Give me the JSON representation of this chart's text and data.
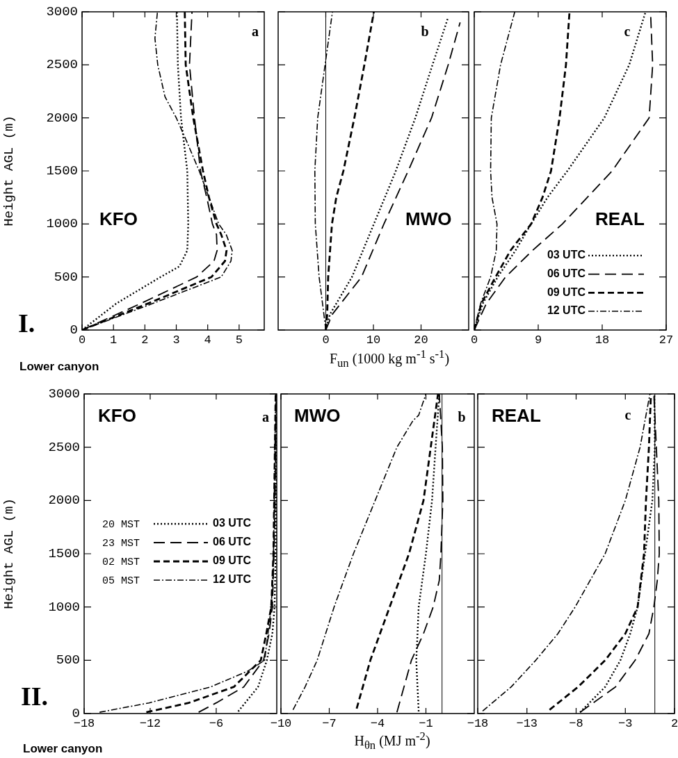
{
  "chart_data": [
    {
      "type": "line",
      "ylabel": "Height AGL (m)",
      "xlim": [
        0,
        5.8
      ],
      "xticks": [
        0,
        1,
        2,
        3,
        4,
        5
      ],
      "ylim": [
        0,
        3000
      ],
      "yticks": [
        0,
        500,
        1000,
        1500,
        2000,
        2500,
        3000
      ],
      "annotations": [
        "KFO",
        "a",
        "I.",
        "Lower canyon"
      ],
      "series": [
        {
          "color": "#000000",
          "line_style": "dotted",
          "x": [
            0,
            1.09,
            2.5,
            3.1,
            3.35,
            3.38,
            3.35,
            3.23,
            3.15,
            3.05,
            3.02
          ],
          "values": [
            0,
            250,
            500,
            600,
            750,
            1000,
            1500,
            1800,
            2000,
            2500,
            3000
          ]
        },
        {
          "color": "#000000",
          "line_style": "longdash",
          "x": [
            0,
            1.87,
            3.65,
            4.2,
            4.3,
            4.28,
            4.15,
            3.97,
            3.77,
            3.58,
            3.42,
            3.5
          ],
          "values": [
            0,
            250,
            500,
            650,
            750,
            900,
            1000,
            1250,
            1500,
            2000,
            2500,
            3000
          ]
        },
        {
          "color": "#000000",
          "line_style": "dashed",
          "x": [
            0,
            2.1,
            4.12,
            4.55,
            4.6,
            4.43,
            4.28,
            4.04,
            3.85,
            3.54,
            3.3,
            3.27
          ],
          "values": [
            0,
            250,
            500,
            650,
            750,
            900,
            1000,
            1250,
            1500,
            2000,
            2500,
            3000
          ]
        },
        {
          "color": "#000000",
          "line_style": "dashdot",
          "x": [
            0,
            2.25,
            4.43,
            4.74,
            4.78,
            4.59,
            4.35,
            4.04,
            3.73,
            3.3,
            3.0,
            2.64,
            2.41,
            2.32,
            2.4
          ],
          "values": [
            0,
            250,
            500,
            650,
            750,
            900,
            1000,
            1250,
            1500,
            1800,
            2000,
            2200,
            2500,
            2750,
            3000
          ]
        }
      ]
    },
    {
      "type": "line",
      "xlabel": "F$_{un}$ (1000 kg m$^{-1}$ s$^{-1}$)",
      "xlim": [
        -10,
        30
      ],
      "xticks": [
        0,
        10,
        20
      ],
      "ylim": [
        0,
        3000
      ],
      "yticks": [
        0,
        500,
        1000,
        1500,
        2000,
        2500,
        3000
      ],
      "tick_labels": "x",
      "annotations": [
        "MWO",
        "b"
      ],
      "ref_lines": [
        {
          "axis": "x",
          "value": 0
        }
      ],
      "series": [
        {
          "color": "#000000",
          "line_style": "dotted",
          "x": [
            0,
            0.9,
            5.5,
            10.1,
            14.7,
            18.8,
            22.4,
            25.7
          ],
          "values": [
            0,
            150,
            500,
            1000,
            1500,
            2000,
            2500,
            2950
          ]
        },
        {
          "color": "#000000",
          "line_style": "longdash",
          "x": [
            0,
            1.4,
            7.5,
            12.2,
            17.3,
            22.2,
            25.7,
            28.2
          ],
          "values": [
            0,
            150,
            500,
            1000,
            1500,
            2000,
            2500,
            2900
          ]
        },
        {
          "color": "#000000",
          "line_style": "dashed",
          "x": [
            0,
            0.3,
            0.5,
            1.3,
            2.2,
            3.7,
            6.0,
            8.1,
            10.1
          ],
          "values": [
            0,
            150,
            500,
            1000,
            1250,
            1500,
            2000,
            2500,
            3000
          ]
        },
        {
          "color": "#000000",
          "line_style": "dashdot",
          "x": [
            0,
            -0.4,
            -1.4,
            -2.2,
            -2.3,
            -1.7,
            -0.15,
            1.4
          ],
          "values": [
            0,
            150,
            500,
            1000,
            1500,
            2000,
            2500,
            3000
          ]
        }
      ]
    },
    {
      "type": "line",
      "xlim": [
        0,
        27
      ],
      "xticks": [
        0,
        9,
        18,
        27
      ],
      "ylim": [
        0,
        3000
      ],
      "yticks": [
        0,
        500,
        1000,
        1500,
        2000,
        2500,
        3000
      ],
      "tick_labels": "x",
      "legend": "bottom right",
      "annotations": [
        "REAL",
        "c"
      ],
      "series": [
        {
          "name": "03 UTC",
          "color": "#000000",
          "line_style": "dotted",
          "x": [
            0,
            1.2,
            3.3,
            5.8,
            8.0,
            10.3,
            13.1,
            18.3,
            21.8,
            24.1
          ],
          "values": [
            0,
            250,
            500,
            750,
            1000,
            1250,
            1500,
            2000,
            2500,
            3000
          ]
        },
        {
          "name": "06 UTC",
          "color": "#000000",
          "line_style": "longdash",
          "x": [
            0,
            1.7,
            4.4,
            8.2,
            12.4,
            19.4,
            24.6,
            25.1,
            24.8
          ],
          "values": [
            0,
            250,
            500,
            750,
            1000,
            1500,
            2000,
            2500,
            3000
          ]
        },
        {
          "name": "09 UTC",
          "color": "#000000",
          "line_style": "dashed",
          "x": [
            0,
            1.0,
            3.0,
            5.1,
            8.0,
            9.6,
            10.8,
            12.0,
            12.9,
            13.4
          ],
          "values": [
            0,
            250,
            500,
            750,
            1000,
            1250,
            1500,
            2000,
            2500,
            3000
          ]
        },
        {
          "name": "12 UTC",
          "color": "#000000",
          "line_style": "dashdot",
          "x": [
            0,
            0.9,
            2.3,
            3.1,
            3.2,
            2.5,
            2.3,
            2.4,
            3.7,
            5.7
          ],
          "values": [
            0,
            250,
            500,
            750,
            1000,
            1250,
            1500,
            2000,
            2500,
            3000
          ]
        }
      ]
    },
    {
      "type": "line",
      "ylabel": "Height AGL (m)",
      "xlim": [
        -18,
        -0.5
      ],
      "xticks": [
        -18,
        -12,
        -6
      ],
      "ylim": [
        0,
        3000
      ],
      "yticks": [
        0,
        500,
        1000,
        1500,
        2000,
        2500,
        3000
      ],
      "legend": "center",
      "annotations": [
        "KFO",
        "a",
        "II.",
        "Lower canyon",
        "20 MST",
        "23 MST",
        "02 MST",
        "05 MST"
      ],
      "series": [
        {
          "name": "03 UTC",
          "color": "#000000",
          "line_style": "dotted",
          "x": [
            -4.0,
            -2.2,
            -1.4,
            -0.9,
            -0.7,
            -0.6,
            -0.55,
            -0.5
          ],
          "values": [
            20,
            250,
            500,
            750,
            1000,
            1500,
            2000,
            3000
          ]
        },
        {
          "name": "06 UTC",
          "color": "#000000",
          "line_style": "longdash",
          "x": [
            -7.6,
            -6.0,
            -3.5,
            -1.7,
            -1.2,
            -0.9,
            -0.75,
            -0.65,
            -0.55
          ],
          "values": [
            12,
            100,
            250,
            500,
            750,
            1000,
            1500,
            2000,
            3000
          ]
        },
        {
          "name": "09 UTC",
          "color": "#000000",
          "line_style": "dashed",
          "x": [
            -12.35,
            -8.5,
            -4.4,
            -1.95,
            -1.45,
            -1.0,
            -0.8,
            -0.6
          ],
          "values": [
            12,
            100,
            250,
            500,
            750,
            1000,
            1500,
            3000
          ]
        },
        {
          "name": "12 UTC",
          "color": "#000000",
          "line_style": "dashdot",
          "x": [
            -16.6,
            -12.1,
            -6.5,
            -3.1,
            -1.6,
            -1.3,
            -1.0,
            -0.8,
            -0.6
          ],
          "values": [
            12,
            100,
            250,
            400,
            500,
            750,
            1000,
            1500,
            3000
          ]
        }
      ]
    },
    {
      "type": "line",
      "xlabel": "H$_{θn}$ (MJ m$^{-2}$)",
      "xlim": [
        -10,
        2
      ],
      "xticks": [
        -10,
        -7,
        -4,
        -1
      ],
      "ylim": [
        0,
        3000
      ],
      "yticks": [
        0,
        500,
        1000,
        1500,
        2000,
        2500,
        3000
      ],
      "tick_labels": "x",
      "annotations": [
        "MWO",
        "b"
      ],
      "ref_lines": [
        {
          "axis": "x",
          "value": 0
        }
      ],
      "series": [
        {
          "color": "#000000",
          "line_style": "dotted",
          "x": [
            -1.45,
            -1.6,
            -1.52,
            -1.45,
            -1.0,
            -0.62,
            -0.4,
            -0.17
          ],
          "values": [
            20,
            500,
            750,
            1000,
            1500,
            2000,
            2500,
            3000
          ]
        },
        {
          "color": "#000000",
          "line_style": "longdash",
          "x": [
            -2.8,
            -1.9,
            -1.15,
            -0.55,
            -0.17,
            -0.07,
            0.05,
            0.02,
            -0.17
          ],
          "values": [
            12,
            500,
            750,
            1000,
            1250,
            1500,
            2000,
            2500,
            3000
          ]
        },
        {
          "color": "#000000",
          "line_style": "dashed",
          "x": [
            -5.3,
            -4.45,
            -3.25,
            -2.05,
            -1.15,
            -0.7,
            -0.25
          ],
          "values": [
            46,
            500,
            1000,
            1500,
            2000,
            2500,
            3000
          ]
        },
        {
          "color": "#000000",
          "line_style": "dashdot",
          "x": [
            -9.25,
            -8.5,
            -7.75,
            -6.7,
            -5.5,
            -4.15,
            -2.8,
            -1.8,
            -1.45,
            -1.0
          ],
          "values": [
            35,
            250,
            500,
            1000,
            1500,
            2000,
            2500,
            2750,
            2800,
            3000
          ]
        }
      ]
    },
    {
      "type": "line",
      "xlim": [
        -18,
        2
      ],
      "xticks": [
        -18,
        -13,
        -8,
        -3,
        2
      ],
      "ylim": [
        0,
        3000
      ],
      "yticks": [
        0,
        500,
        1000,
        1500,
        2000,
        2500,
        3000
      ],
      "tick_labels": "x",
      "annotations": [
        "REAL",
        "c"
      ],
      "ref_lines": [
        {
          "axis": "x",
          "value": 0
        }
      ],
      "series": [
        {
          "color": "#000000",
          "line_style": "dotted",
          "x": [
            -7.6,
            -5.05,
            -3.5,
            -2.5,
            -1.75,
            -1.0,
            -0.25,
            0.0,
            -0.05
          ],
          "values": [
            12,
            250,
            500,
            750,
            1000,
            1500,
            2000,
            2500,
            3000
          ]
        },
        {
          "color": "#000000",
          "line_style": "longdash",
          "x": [
            -7.6,
            -4.0,
            -2.0,
            -0.6,
            -0.1,
            0.25,
            0.45,
            0.4,
            0.15,
            -0.1
          ],
          "values": [
            12,
            250,
            500,
            750,
            1000,
            1250,
            1500,
            2000,
            2500,
            3000
          ]
        },
        {
          "color": "#000000",
          "line_style": "dashed",
          "x": [
            -10.7,
            -7.8,
            -5.05,
            -3.0,
            -1.75,
            -1.1,
            -0.9,
            -0.6,
            -0.4
          ],
          "values": [
            35,
            250,
            500,
            750,
            1000,
            1500,
            2000,
            2500,
            3000
          ]
        },
        {
          "color": "#000000",
          "line_style": "dashdot",
          "x": [
            -17.5,
            -14.6,
            -12.1,
            -9.85,
            -8.1,
            -5.05,
            -3.0,
            -1.5,
            -0.5
          ],
          "values": [
            23,
            250,
            500,
            750,
            1000,
            1500,
            2000,
            2500,
            3000
          ]
        }
      ]
    }
  ]
}
